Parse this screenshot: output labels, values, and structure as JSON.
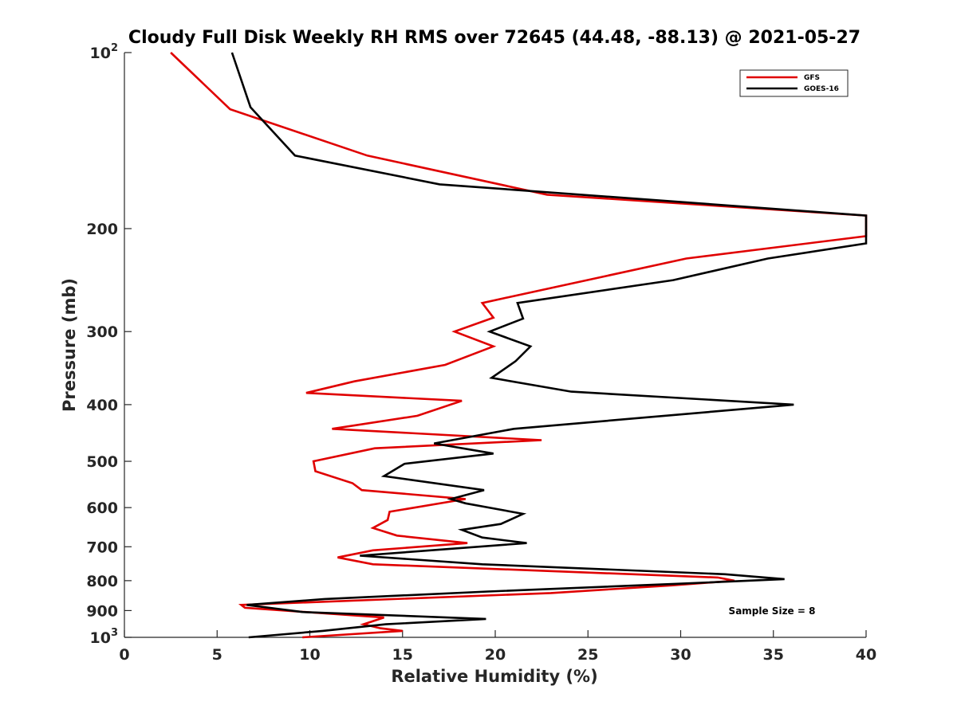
{
  "chart_data": {
    "type": "line",
    "title": "Cloudy Full Disk Weekly RH RMS over 72645 (44.48, -88.13) @ 2021-05-27",
    "xlabel": "Relative Humidity (%)",
    "ylabel": "Pressure (mb)",
    "xlim": [
      0,
      40
    ],
    "ylim": [
      100,
      1000
    ],
    "y_scale": "log",
    "y_reversed": true,
    "grid": false,
    "legend_position": "top-right",
    "x_ticks": [
      {
        "value": 0,
        "label": "0"
      },
      {
        "value": 5,
        "label": "5"
      },
      {
        "value": 10,
        "label": "10"
      },
      {
        "value": 15,
        "label": "15"
      },
      {
        "value": 20,
        "label": "20"
      },
      {
        "value": 25,
        "label": "25"
      },
      {
        "value": 30,
        "label": "30"
      },
      {
        "value": 35,
        "label": "35"
      },
      {
        "value": 40,
        "label": "40"
      }
    ],
    "y_ticks": [
      {
        "value": 100,
        "base": "10",
        "exp": "2"
      },
      {
        "value": 200,
        "label": "200"
      },
      {
        "value": 300,
        "label": "300"
      },
      {
        "value": 400,
        "label": "400"
      },
      {
        "value": 500,
        "label": "500"
      },
      {
        "value": 600,
        "label": "600"
      },
      {
        "value": 700,
        "label": "700"
      },
      {
        "value": 800,
        "label": "800"
      },
      {
        "value": 900,
        "label": "900"
      },
      {
        "value": 1000,
        "base": "10",
        "exp": "3"
      }
    ],
    "series": [
      {
        "name": "GFS",
        "color": "#e00000",
        "points": [
          [
            2.5,
            100
          ],
          [
            5.7,
            125
          ],
          [
            13.1,
            150
          ],
          [
            22.8,
            175
          ],
          [
            40,
            190
          ],
          [
            40,
            206
          ],
          [
            30.3,
            225
          ],
          [
            19.3,
            268
          ],
          [
            19.9,
            284
          ],
          [
            17.8,
            300
          ],
          [
            19.9,
            318
          ],
          [
            17.3,
            342
          ],
          [
            12.4,
            365
          ],
          [
            9.8,
            382
          ],
          [
            18.2,
            394
          ],
          [
            15.8,
            418
          ],
          [
            11.2,
            440
          ],
          [
            22.5,
            460
          ],
          [
            13.5,
            475
          ],
          [
            10.2,
            500
          ],
          [
            10.3,
            520
          ],
          [
            12.3,
            545
          ],
          [
            12.8,
            560
          ],
          [
            18.4,
            580
          ],
          [
            14.3,
            610
          ],
          [
            14.2,
            630
          ],
          [
            13.4,
            650
          ],
          [
            14.7,
            670
          ],
          [
            18.5,
            690
          ],
          [
            13.4,
            710
          ],
          [
            11.5,
            730
          ],
          [
            13.4,
            750
          ],
          [
            32.0,
            790
          ],
          [
            32.9,
            800
          ],
          [
            29.5,
            815
          ],
          [
            23.0,
            840
          ],
          [
            6.3,
            880
          ],
          [
            6.5,
            890
          ],
          [
            14.0,
            925
          ],
          [
            12.9,
            950
          ],
          [
            13.8,
            965
          ],
          [
            15.0,
            975
          ],
          [
            9.6,
            1000
          ]
        ]
      },
      {
        "name": "GOES-16",
        "color": "#000000",
        "points": [
          [
            5.8,
            100
          ],
          [
            6.8,
            124
          ],
          [
            9.2,
            150
          ],
          [
            17.0,
            168
          ],
          [
            40,
            190
          ],
          [
            40,
            212
          ],
          [
            34.7,
            225
          ],
          [
            29.6,
            245
          ],
          [
            21.2,
            268
          ],
          [
            21.5,
            285
          ],
          [
            19.7,
            300
          ],
          [
            21.9,
            318
          ],
          [
            21.1,
            337
          ],
          [
            19.8,
            360
          ],
          [
            24.1,
            380
          ],
          [
            36.1,
            400
          ],
          [
            21.0,
            440
          ],
          [
            16.7,
            466
          ],
          [
            19.9,
            485
          ],
          [
            15.1,
            505
          ],
          [
            14.0,
            530
          ],
          [
            19.4,
            560
          ],
          [
            17.6,
            580
          ],
          [
            18.4,
            590
          ],
          [
            21.5,
            615
          ],
          [
            20.3,
            640
          ],
          [
            18.2,
            655
          ],
          [
            19.3,
            675
          ],
          [
            21.7,
            690
          ],
          [
            12.7,
            725
          ],
          [
            19.3,
            750
          ],
          [
            32.4,
            780
          ],
          [
            35.6,
            795
          ],
          [
            29.8,
            810
          ],
          [
            19.6,
            835
          ],
          [
            10.8,
            860
          ],
          [
            6.6,
            880
          ],
          [
            9.6,
            905
          ],
          [
            19.5,
            930
          ],
          [
            14.1,
            950
          ],
          [
            10.7,
            975
          ],
          [
            6.7,
            1000
          ]
        ]
      }
    ],
    "annotations": [
      {
        "text": "Sample Size = 8"
      }
    ]
  }
}
